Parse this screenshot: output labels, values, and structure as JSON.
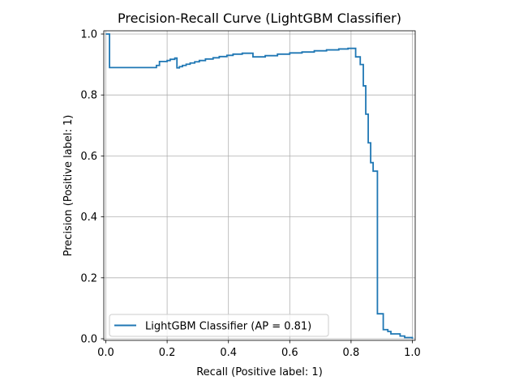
{
  "chart_data": {
    "type": "line",
    "title": "Precision-Recall Curve (LightGBM Classifier)",
    "xlabel": "Recall (Positive label: 1)",
    "ylabel": "Precision (Positive label: 1)",
    "xlim": [
      0.0,
      1.0
    ],
    "ylim": [
      0.0,
      1.0
    ],
    "xticks": [
      "0.0",
      "0.2",
      "0.4",
      "0.6",
      "0.8",
      "1.0"
    ],
    "yticks": [
      "0.0",
      "0.2",
      "0.4",
      "0.6",
      "0.8",
      "1.0"
    ],
    "grid": true,
    "drawstyle": "steps-post",
    "legend": {
      "placement": "lower-left"
    },
    "series": [
      {
        "name": "LightGBM Classifier (AP = 0.81)",
        "color": "#1f77b4",
        "points": [
          [
            0.0,
            1.0
          ],
          [
            0.012,
            1.0
          ],
          [
            0.012,
            0.89
          ],
          [
            0.165,
            0.89
          ],
          [
            0.165,
            0.897
          ],
          [
            0.175,
            0.897
          ],
          [
            0.175,
            0.91
          ],
          [
            0.2,
            0.91
          ],
          [
            0.2,
            0.913
          ],
          [
            0.21,
            0.913
          ],
          [
            0.21,
            0.917
          ],
          [
            0.225,
            0.917
          ],
          [
            0.225,
            0.921
          ],
          [
            0.232,
            0.921
          ],
          [
            0.232,
            0.889
          ],
          [
            0.24,
            0.889
          ],
          [
            0.24,
            0.893
          ],
          [
            0.25,
            0.893
          ],
          [
            0.25,
            0.897
          ],
          [
            0.262,
            0.897
          ],
          [
            0.262,
            0.901
          ],
          [
            0.275,
            0.901
          ],
          [
            0.275,
            0.905
          ],
          [
            0.29,
            0.905
          ],
          [
            0.29,
            0.909
          ],
          [
            0.305,
            0.909
          ],
          [
            0.305,
            0.913
          ],
          [
            0.325,
            0.913
          ],
          [
            0.325,
            0.918
          ],
          [
            0.35,
            0.918
          ],
          [
            0.35,
            0.922
          ],
          [
            0.37,
            0.922
          ],
          [
            0.37,
            0.926
          ],
          [
            0.395,
            0.926
          ],
          [
            0.395,
            0.93
          ],
          [
            0.415,
            0.93
          ],
          [
            0.415,
            0.934
          ],
          [
            0.445,
            0.934
          ],
          [
            0.445,
            0.937
          ],
          [
            0.48,
            0.937
          ],
          [
            0.48,
            0.925
          ],
          [
            0.52,
            0.925
          ],
          [
            0.52,
            0.929
          ],
          [
            0.56,
            0.929
          ],
          [
            0.56,
            0.934
          ],
          [
            0.6,
            0.934
          ],
          [
            0.6,
            0.938
          ],
          [
            0.64,
            0.938
          ],
          [
            0.64,
            0.941
          ],
          [
            0.68,
            0.941
          ],
          [
            0.68,
            0.945
          ],
          [
            0.72,
            0.945
          ],
          [
            0.72,
            0.948
          ],
          [
            0.76,
            0.948
          ],
          [
            0.76,
            0.951
          ],
          [
            0.79,
            0.951
          ],
          [
            0.79,
            0.953
          ],
          [
            0.815,
            0.953
          ],
          [
            0.815,
            0.925
          ],
          [
            0.83,
            0.925
          ],
          [
            0.83,
            0.9
          ],
          [
            0.84,
            0.9
          ],
          [
            0.84,
            0.83
          ],
          [
            0.848,
            0.83
          ],
          [
            0.848,
            0.737
          ],
          [
            0.856,
            0.737
          ],
          [
            0.856,
            0.643
          ],
          [
            0.864,
            0.643
          ],
          [
            0.864,
            0.578
          ],
          [
            0.872,
            0.578
          ],
          [
            0.872,
            0.55
          ],
          [
            0.886,
            0.55
          ],
          [
            0.886,
            0.082
          ],
          [
            0.905,
            0.082
          ],
          [
            0.905,
            0.03
          ],
          [
            0.92,
            0.03
          ],
          [
            0.92,
            0.024
          ],
          [
            0.93,
            0.024
          ],
          [
            0.93,
            0.016
          ],
          [
            0.96,
            0.016
          ],
          [
            0.96,
            0.009
          ],
          [
            0.975,
            0.009
          ],
          [
            0.975,
            0.004
          ],
          [
            1.0,
            0.004
          ],
          [
            1.0,
            0.0
          ]
        ]
      }
    ]
  }
}
